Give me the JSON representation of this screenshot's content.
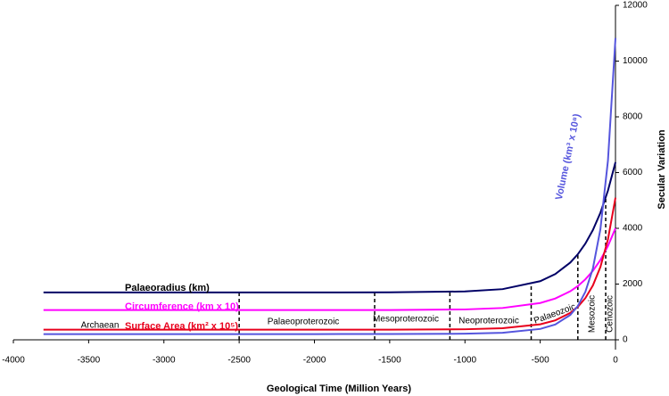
{
  "chart_data": {
    "type": "line",
    "x_label": "Geological Time (Million Years)",
    "y_label": "Secular Variation",
    "x": [
      -3800,
      -3000,
      -2000,
      -1500,
      -1000,
      -750,
      -500,
      -400,
      -300,
      -250,
      -200,
      -150,
      -100,
      -50,
      0
    ],
    "series": [
      {
        "name": "Palaeoradius (km)",
        "color": "#000066",
        "values": [
          1700,
          1700,
          1700,
          1703,
          1735,
          1818,
          2103,
          2358,
          2773,
          3071,
          3452,
          3939,
          4561,
          5355,
          6370
        ]
      },
      {
        "name": "Circumference (km x 10)",
        "color": "#ff00ff",
        "values": [
          1068,
          1068,
          1068,
          1070,
          1090,
          1142,
          1321,
          1482,
          1742,
          1930,
          2169,
          2475,
          2866,
          3365,
          4002
        ]
      },
      {
        "name": "Surface Area (km² x 10⁵)",
        "color": "#e8001c",
        "values": [
          363,
          363,
          363,
          364,
          378,
          415,
          556,
          699,
          966,
          1185,
          1497,
          1950,
          2614,
          3604,
          5099
        ]
      },
      {
        "name": "Volume (km³ x 10⁸)",
        "color": "#5555dd",
        "values": [
          206,
          206,
          206,
          207,
          219,
          252,
          390,
          549,
          893,
          1213,
          1723,
          2560,
          3974,
          6432,
          10827
        ]
      }
    ],
    "periods": [
      "Archaean",
      "Palaeoproterozoic",
      "Mesoproterozoic",
      "Neoproterozoic",
      "Palaeozoic",
      "Mesozoic",
      "Cenozoic"
    ],
    "boundaries": [
      -2500,
      -1600,
      -1100,
      -560,
      -250,
      -65
    ],
    "xlim": [
      -4000,
      0
    ],
    "xticks": [
      -4000,
      -3500,
      -3000,
      -2500,
      -2000,
      -1500,
      -1000,
      -500,
      0
    ],
    "ylim": [
      0,
      12000
    ],
    "yticks": [
      0,
      2000,
      4000,
      6000,
      8000,
      10000,
      12000
    ]
  }
}
